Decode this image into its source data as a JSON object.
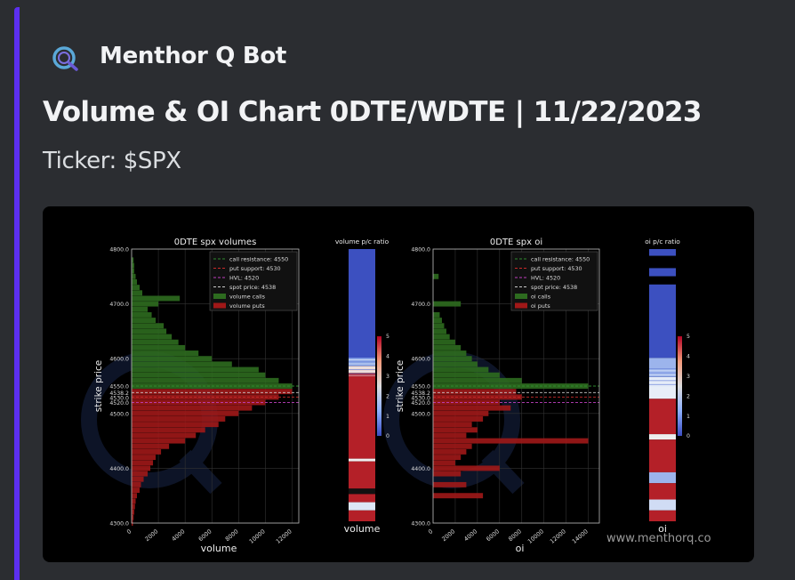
{
  "message": {
    "bot_name": "Menthor Q Bot",
    "accent_color": "#5c2ff0"
  },
  "embed": {
    "title": "Volume & OI Chart 0DTE/WDTE | 11/22/2023",
    "description": "Ticker: $SPX",
    "watermark": "www.menthorq.co"
  },
  "chart_data": [
    {
      "type": "bar",
      "orientation": "horizontal",
      "title": "0DTE  spx volumes",
      "xlabel": "volume",
      "ylabel": "strike price",
      "xlim": [
        0,
        12500
      ],
      "ylim": [
        4300,
        4800
      ],
      "xticks": [
        "0",
        "2000",
        "4000",
        "6000",
        "8000",
        "10000",
        "12000"
      ],
      "xtick_values": [
        0,
        2000,
        4000,
        6000,
        8000,
        10000,
        12000
      ],
      "yticks": [
        "4300.0",
        "4400.0",
        "4500.0",
        "4520.0",
        "4530.0",
        "4538.2",
        "4550.0",
        "4600.0",
        "4700.0",
        "4800.0"
      ],
      "ytick_values": [
        4300,
        4400,
        4500,
        4520,
        4530,
        4538.2,
        4550,
        4600,
        4700,
        4800
      ],
      "levels": [
        {
          "label": "call resistance: 4550",
          "value": 4550,
          "color": "#2e8b2e"
        },
        {
          "label": "put support: 4530",
          "value": 4530,
          "color": "#cc2a2a"
        },
        {
          "label": "HVL: 4520",
          "value": 4520,
          "color": "#c040c0"
        },
        {
          "label": "spot price: 4538",
          "value": 4538.2,
          "color": "#cccccc"
        }
      ],
      "series": [
        {
          "name": "volume calls",
          "color": "#2d6b1f",
          "strikes": [
            4550,
            4560,
            4570,
            4580,
            4590,
            4600,
            4610,
            4620,
            4630,
            4640,
            4650,
            4660,
            4670,
            4680,
            4690,
            4700,
            4710,
            4720,
            4730,
            4740,
            4750,
            4760,
            4770,
            4780
          ],
          "values": [
            12000,
            11000,
            10000,
            9500,
            7500,
            6000,
            5000,
            4000,
            3500,
            3000,
            2600,
            2400,
            1800,
            1500,
            1200,
            2000,
            3600,
            800,
            600,
            400,
            300,
            200,
            200,
            150
          ]
        },
        {
          "name": "volume puts",
          "color": "#a01818",
          "strikes": [
            4300,
            4310,
            4320,
            4330,
            4340,
            4350,
            4360,
            4370,
            4380,
            4390,
            4400,
            4410,
            4420,
            4430,
            4440,
            4450,
            4460,
            4470,
            4480,
            4490,
            4500,
            4510,
            4520,
            4530,
            4540
          ],
          "values": [
            100,
            150,
            200,
            250,
            300,
            400,
            600,
            700,
            900,
            1200,
            1400,
            1600,
            1800,
            2200,
            2800,
            4000,
            4800,
            5500,
            6500,
            7000,
            8000,
            9000,
            10000,
            11000,
            12000
          ]
        }
      ],
      "legend": "top-right"
    },
    {
      "type": "heatmap",
      "title": "volume p/c ratio",
      "xlabel": "volume",
      "colorbar_range": [
        0,
        5
      ],
      "colorbar_ticks": [
        "0",
        "1",
        "2",
        "3",
        "4",
        "5"
      ]
    },
    {
      "type": "bar",
      "orientation": "horizontal",
      "title": "0DTE  spx oi",
      "xlabel": "oi",
      "ylabel": "strike price",
      "xlim": [
        0,
        15000
      ],
      "ylim": [
        4300,
        4800
      ],
      "xticks": [
        "0",
        "2000",
        "4000",
        "6000",
        "8000",
        "10000",
        "12000",
        "14000"
      ],
      "xtick_values": [
        0,
        2000,
        4000,
        6000,
        8000,
        10000,
        12000,
        14000
      ],
      "yticks": [
        "4300.0",
        "4400.0",
        "4500.0",
        "4520.0",
        "4530.0",
        "4538.2",
        "4550.0",
        "4600.0",
        "4700.0",
        "4800.0"
      ],
      "ytick_values": [
        4300,
        4400,
        4500,
        4520,
        4530,
        4538.2,
        4550,
        4600,
        4700,
        4800
      ],
      "levels": [
        {
          "label": "call resistance: 4550",
          "value": 4550,
          "color": "#2e8b2e"
        },
        {
          "label": "put support: 4530",
          "value": 4530,
          "color": "#cc2a2a"
        },
        {
          "label": "HVL: 4520",
          "value": 4520,
          "color": "#c040c0"
        },
        {
          "label": "spot price: 4538",
          "value": 4538.2,
          "color": "#cccccc"
        }
      ],
      "series": [
        {
          "name": "oi calls",
          "color": "#2d6b1f",
          "strikes": [
            4550,
            4560,
            4570,
            4580,
            4590,
            4600,
            4610,
            4620,
            4630,
            4640,
            4650,
            4660,
            4670,
            4680,
            4700,
            4750
          ],
          "values": [
            14000,
            8000,
            6000,
            5000,
            4000,
            3500,
            3000,
            2500,
            2000,
            1500,
            1200,
            1000,
            800,
            600,
            2500,
            500
          ]
        },
        {
          "name": "oi puts",
          "color": "#a01818",
          "strikes": [
            4350,
            4370,
            4390,
            4400,
            4410,
            4420,
            4430,
            4440,
            4450,
            4460,
            4470,
            4480,
            4490,
            4500,
            4510,
            4520,
            4530,
            4540
          ],
          "values": [
            4500,
            3000,
            2500,
            6000,
            2000,
            2500,
            3000,
            3500,
            14000,
            3000,
            4000,
            3500,
            4500,
            5000,
            7000,
            6000,
            8000,
            7500
          ]
        }
      ],
      "legend": "top-right"
    },
    {
      "type": "heatmap",
      "title": "oi p/c ratio",
      "xlabel": "oi",
      "colorbar_range": [
        0,
        5
      ],
      "colorbar_ticks": [
        "0",
        "1",
        "2",
        "3",
        "4",
        "5"
      ]
    }
  ]
}
